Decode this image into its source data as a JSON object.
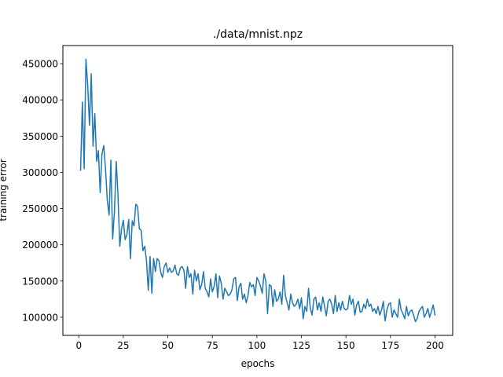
{
  "chart_data": {
    "type": "line",
    "title": "./data/mnist.npz",
    "xlabel": "epochs",
    "ylabel": "training error",
    "xlim": [
      -8.95,
      209.95
    ],
    "ylim": [
      75000,
      475000
    ],
    "xticks": [
      0,
      25,
      50,
      75,
      100,
      125,
      150,
      175,
      200
    ],
    "yticks": [
      100000,
      150000,
      200000,
      250000,
      300000,
      350000,
      400000,
      450000
    ],
    "grid": false,
    "series": [
      {
        "color": "#1f77b4",
        "x": [
          1,
          2,
          3,
          4,
          5,
          6,
          7,
          8,
          9,
          10,
          11,
          12,
          13,
          14,
          15,
          16,
          17,
          18,
          19,
          20,
          21,
          22,
          23,
          24,
          25,
          26,
          27,
          28,
          29,
          30,
          31,
          32,
          33,
          34,
          35,
          36,
          37,
          38,
          39,
          40,
          41,
          42,
          43,
          44,
          45,
          46,
          47,
          48,
          49,
          50,
          51,
          52,
          53,
          54,
          55,
          56,
          57,
          58,
          59,
          60,
          61,
          62,
          63,
          64,
          65,
          66,
          67,
          68,
          69,
          70,
          71,
          72,
          73,
          74,
          75,
          76,
          77,
          78,
          79,
          80,
          81,
          82,
          83,
          84,
          85,
          86,
          87,
          88,
          89,
          90,
          91,
          92,
          93,
          94,
          95,
          96,
          97,
          98,
          99,
          100,
          101,
          102,
          103,
          104,
          105,
          106,
          107,
          108,
          109,
          110,
          111,
          112,
          113,
          114,
          115,
          116,
          117,
          118,
          119,
          120,
          121,
          122,
          123,
          124,
          125,
          126,
          127,
          128,
          129,
          130,
          131,
          132,
          133,
          134,
          135,
          136,
          137,
          138,
          139,
          140,
          141,
          142,
          143,
          144,
          145,
          146,
          147,
          148,
          149,
          150,
          151,
          152,
          153,
          154,
          155,
          156,
          157,
          158,
          159,
          160,
          161,
          162,
          163,
          164,
          165,
          166,
          167,
          168,
          169,
          170,
          171,
          172,
          173,
          174,
          175,
          176,
          177,
          178,
          179,
          180,
          181,
          182,
          183,
          184,
          185,
          186,
          187,
          188,
          189,
          190,
          191,
          192,
          193,
          194,
          195,
          196,
          197,
          198,
          199,
          200
        ],
        "y": [
          303000,
          397000,
          305000,
          456000,
          420000,
          365000,
          436000,
          336000,
          381000,
          315000,
          330000,
          272000,
          325000,
          337000,
          305000,
          261000,
          241000,
          317000,
          208000,
          245000,
          315000,
          268000,
          198000,
          222000,
          234000,
          207000,
          214000,
          235000,
          181000,
          233000,
          226000,
          256000,
          253000,
          222000,
          220000,
          192000,
          198000,
          178000,
          137000,
          184000,
          133000,
          181000,
          163000,
          181000,
          178000,
          162000,
          155000,
          170000,
          175000,
          162000,
          168000,
          162000,
          164000,
          172000,
          160000,
          158000,
          168000,
          170000,
          165000,
          140000,
          170000,
          155000,
          160000,
          132000,
          165000,
          150000,
          160000,
          138000,
          145000,
          163000,
          140000,
          135000,
          128000,
          153000,
          135000,
          143000,
          160000,
          127000,
          157000,
          147000,
          125000,
          140000,
          135000,
          130000,
          132000,
          138000,
          153000,
          155000,
          123000,
          142000,
          147000,
          125000,
          132000,
          120000,
          130000,
          148000,
          142000,
          145000,
          130000,
          155000,
          150000,
          143000,
          133000,
          160000,
          150000,
          105000,
          145000,
          143000,
          115000,
          138000,
          122000,
          125000,
          135000,
          118000,
          158000,
          130000,
          120000,
          110000,
          132000,
          120000,
          115000,
          118000,
          125000,
          112000,
          127000,
          98000,
          115000,
          108000,
          140000,
          112000,
          103000,
          125000,
          128000,
          110000,
          120000,
          108000,
          128000,
          115000,
          102000,
          122000,
          125000,
          118000,
          105000,
          130000,
          108000,
          120000,
          110000,
          122000,
          112000,
          110000,
          112000,
          130000,
          118000,
          125000,
          103000,
          117000,
          122000,
          107000,
          108000,
          118000,
          112000,
          125000,
          115000,
          118000,
          108000,
          112000,
          105000,
          115000,
          103000,
          110000,
          122000,
          95000,
          110000,
          118000,
          120000,
          100000,
          110000,
          105000,
          100000,
          125000,
          110000,
          105000,
          98000,
          115000,
          102000,
          108000,
          110000,
          103000,
          94000,
          98000,
          108000,
          112000,
          115000,
          100000,
          105000,
          112000,
          100000,
          108000,
          117000,
          103000
        ]
      }
    ]
  }
}
